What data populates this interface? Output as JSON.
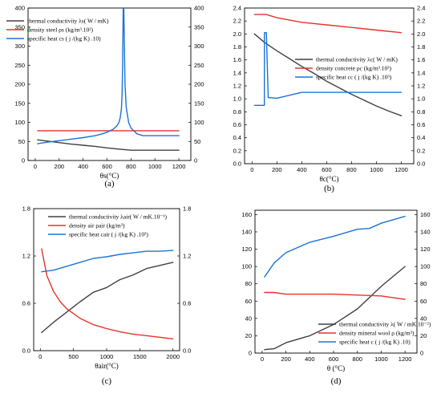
{
  "chart_data": [
    {
      "panel": "(a)",
      "type": "line",
      "xlabel": "θs(°C)",
      "xticks": [
        "0",
        "200",
        "400",
        "600",
        "800",
        "1000",
        "1200"
      ],
      "yticks_left": [
        "0",
        "50",
        "100",
        "150",
        "200",
        "250",
        "300",
        "350",
        "400"
      ],
      "yticks_right": [
        "0",
        "50",
        "100",
        "150",
        "200",
        "250",
        "300",
        "350",
        "400"
      ],
      "xlim": [
        -60,
        1300
      ],
      "ylim": [
        0,
        400
      ],
      "legend_position": "top-left",
      "series": [
        {
          "name": "thermal conductivity λs( W / mK)",
          "color": "#404040",
          "x": [
            20,
            100,
            200,
            300,
            400,
            500,
            600,
            700,
            800,
            900,
            1000,
            1100,
            1200
          ],
          "y": [
            54,
            51,
            47,
            43,
            40,
            37,
            33,
            30,
            27,
            27,
            27,
            27,
            27
          ]
        },
        {
          "name": "density steel ρs (kg/m³.10²)",
          "color": "#e8312d",
          "x": [
            20,
            1200
          ],
          "y": [
            78,
            78
          ]
        },
        {
          "name": "specific heat cs ( j /(kg K) .10)",
          "color": "#1a73d9",
          "x": [
            20,
            100,
            200,
            300,
            400,
            500,
            550,
            600,
            650,
            680,
            700,
            710,
            720,
            725,
            730,
            735,
            740,
            750,
            760,
            780,
            800,
            850,
            900,
            1000,
            1100,
            1200
          ],
          "y": [
            44,
            48,
            52,
            56,
            60,
            65,
            69,
            74,
            82,
            90,
            100,
            112,
            135,
            170,
            250,
            400,
            400,
            200,
            140,
            100,
            85,
            70,
            65,
            65,
            65,
            65
          ]
        }
      ]
    },
    {
      "panel": "(b)",
      "type": "line",
      "xlabel": "θc(°C)",
      "xticks": [
        "0",
        "200",
        "400",
        "600",
        "800",
        "1000",
        "1200"
      ],
      "yticks_left": [
        "0.0",
        "0.2",
        "0.4",
        "0.6",
        "0.8",
        "1.0",
        "1.2",
        "1.4",
        "1.6",
        "1.8",
        "2.0",
        "2.2",
        "2.4"
      ],
      "yticks_right": [
        "0.0",
        "0.2",
        "0.4",
        "0.6",
        "0.8",
        "1.0",
        "1.2",
        "1.4",
        "1.6",
        "1.8",
        "2.0",
        "2.2",
        "2.4"
      ],
      "xlim": [
        -60,
        1300
      ],
      "ylim": [
        0,
        2.4
      ],
      "legend_position": "center-right",
      "series": [
        {
          "name": "thermal conductivity λc( W / mK)",
          "color": "#404040",
          "x": [
            20,
            100,
            200,
            300,
            400,
            500,
            600,
            700,
            800,
            900,
            1000,
            1100,
            1200
          ],
          "y": [
            2.0,
            1.87,
            1.74,
            1.62,
            1.5,
            1.39,
            1.27,
            1.17,
            1.07,
            0.98,
            0.89,
            0.81,
            0.74
          ]
        },
        {
          "name": "density concrete ρc (kg/m³.10³)",
          "color": "#e8312d",
          "x": [
            20,
            115,
            200,
            400,
            600,
            800,
            1000,
            1200
          ],
          "y": [
            2.3,
            2.3,
            2.25,
            2.18,
            2.14,
            2.1,
            2.06,
            2.02
          ]
        },
        {
          "name": "specific heat cc ( j /(kg K) .10³)",
          "color": "#1a73d9",
          "x": [
            20,
            99,
            100,
            115,
            130,
            200,
            400,
            600,
            800,
            1000,
            1200
          ],
          "y": [
            0.9,
            0.9,
            2.02,
            2.02,
            1.02,
            1.01,
            1.1,
            1.1,
            1.1,
            1.1,
            1.1
          ]
        }
      ]
    },
    {
      "panel": "(c)",
      "type": "line",
      "xlabel": "θair(°C)",
      "xticks": [
        "0",
        "500",
        "1000",
        "1500",
        "2000"
      ],
      "yticks_left": [
        "0.0",
        "0.6",
        "1.2",
        "1.8"
      ],
      "yticks_right": [
        "0.0",
        "0.6",
        "1.2",
        "1.8"
      ],
      "xlim": [
        -100,
        2100
      ],
      "ylim": [
        0,
        1.8
      ],
      "legend_position": "top-center",
      "series": [
        {
          "name": "thermal conductivity λair( W / mK.10⁻¹)",
          "color": "#404040",
          "x": [
            20,
            200,
            400,
            600,
            800,
            1000,
            1200,
            1400,
            1600,
            1800,
            2000
          ],
          "y": [
            0.23,
            0.36,
            0.49,
            0.62,
            0.74,
            0.8,
            0.9,
            0.96,
            1.04,
            1.08,
            1.12
          ]
        },
        {
          "name": "density air ρair (kg/m³)",
          "color": "#e8312d",
          "x": [
            20,
            100,
            200,
            300,
            400,
            600,
            800,
            1000,
            1200,
            1400,
            1600,
            1800,
            2000
          ],
          "y": [
            1.29,
            0.95,
            0.75,
            0.62,
            0.53,
            0.41,
            0.33,
            0.28,
            0.24,
            0.21,
            0.19,
            0.17,
            0.15
          ]
        },
        {
          "name": "specific heat cair ( j /(kg K) .10³)",
          "color": "#1a73d9",
          "x": [
            20,
            200,
            400,
            600,
            800,
            1000,
            1200,
            1400,
            1600,
            1800,
            2000
          ],
          "y": [
            1.0,
            1.02,
            1.07,
            1.12,
            1.17,
            1.19,
            1.22,
            1.24,
            1.26,
            1.26,
            1.27
          ]
        }
      ]
    },
    {
      "panel": "(d)",
      "type": "line",
      "xlabel": "θ (°C)",
      "xticks": [
        "0",
        "200",
        "400",
        "600",
        "800",
        "1000",
        "1200"
      ],
      "yticks_left": [
        "0",
        "20",
        "40",
        "60",
        "80",
        "100",
        "120",
        "140",
        "160"
      ],
      "yticks_right": [
        "0",
        "20",
        "40",
        "60",
        "80",
        "100",
        "120",
        "140",
        "160"
      ],
      "xlim": [
        -60,
        1300
      ],
      "ylim": [
        0,
        165
      ],
      "legend_position": "bottom-right",
      "series": [
        {
          "name": "thermal conductivity λ( W / mK.10⁻²)",
          "color": "#404040",
          "x": [
            20,
            100,
            200,
            400,
            600,
            800,
            1000,
            1200
          ],
          "y": [
            4,
            5,
            12,
            20,
            33,
            51,
            77,
            100
          ]
        },
        {
          "name": "density mineral wool ρ (kg/m³)",
          "color": "#e8312d",
          "x": [
            20,
            100,
            200,
            400,
            600,
            800,
            1000,
            1200
          ],
          "y": [
            70,
            70,
            68,
            68,
            68,
            67,
            66,
            62
          ]
        },
        {
          "name": "specific heat c ( j /(kg K) .10)",
          "color": "#1a73d9",
          "x": [
            20,
            100,
            200,
            400,
            600,
            800,
            900,
            1000,
            1200
          ],
          "y": [
            88,
            104,
            116,
            128,
            135,
            143,
            144,
            150,
            158
          ]
        }
      ]
    }
  ]
}
